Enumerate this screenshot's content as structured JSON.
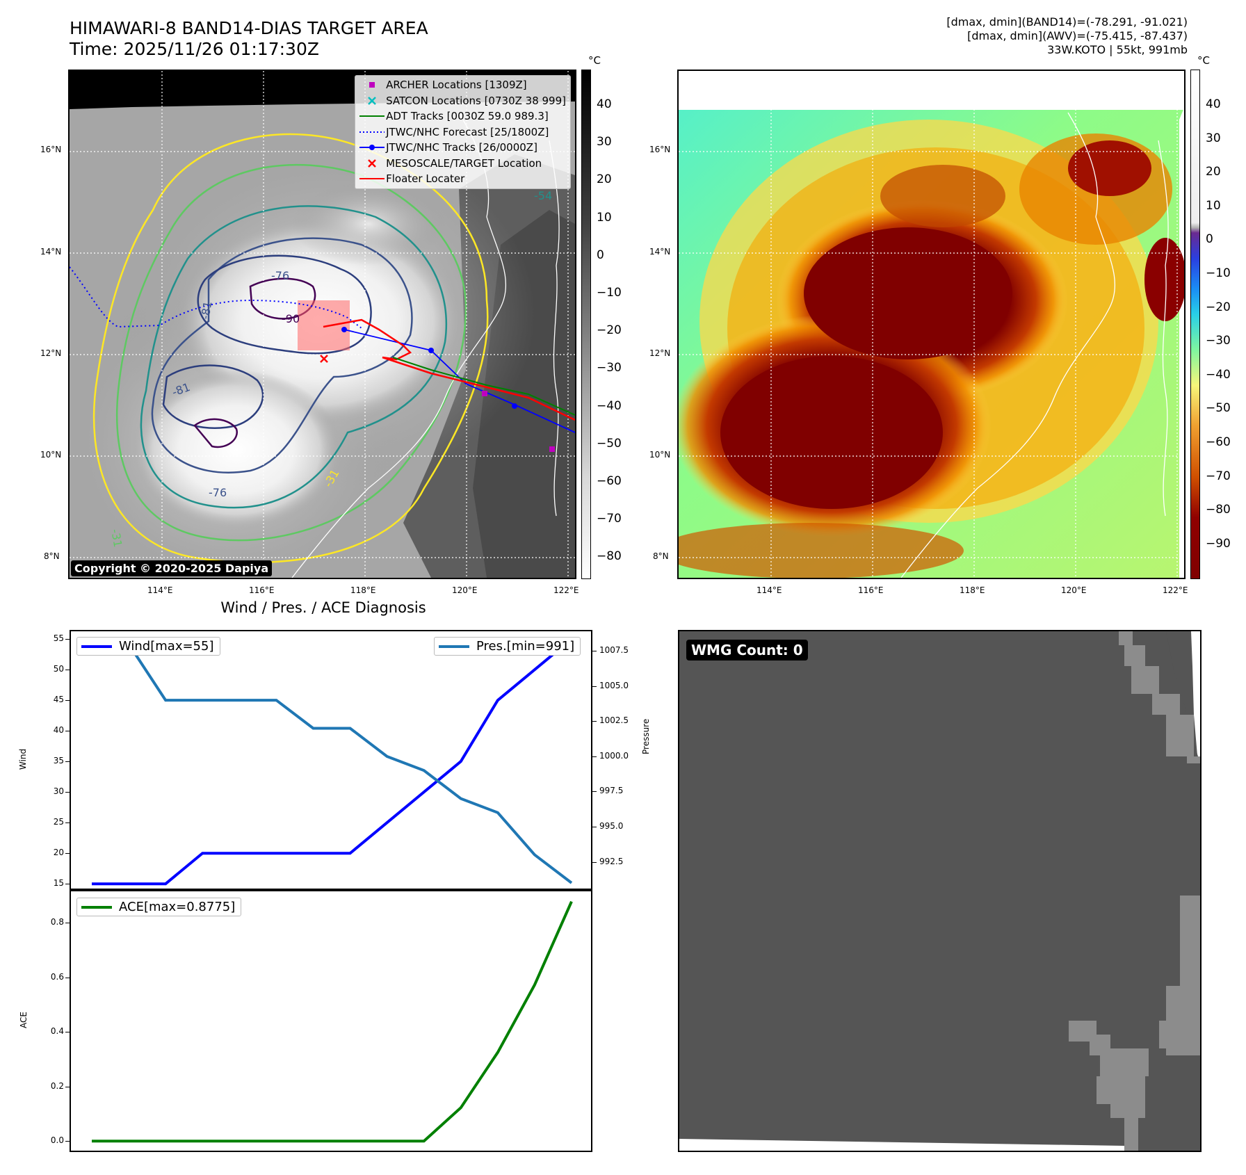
{
  "header": {
    "title_line1": "HIMAWARI-8 BAND14-DIAS TARGET AREA",
    "title_line2": "Time: 2025/11/26 01:17:30Z",
    "info_line1": "[dmax, dmin](BAND14)=(-78.291, -91.021)",
    "info_line2": "[dmax, dmin](AWV)=(-75.415, -87.437)",
    "info_line3": "33W.KOTO | 55kt, 991mb"
  },
  "map": {
    "lat_labels": [
      "16°N",
      "14°N",
      "12°N",
      "10°N",
      "8°N"
    ],
    "lon_labels": [
      "114°E",
      "116°E",
      "118°E",
      "120°E",
      "122°E"
    ],
    "contour_labels": [
      "-90",
      "-81",
      "-76",
      "-81",
      "-76",
      "-54",
      "-31",
      "-31"
    ],
    "copyright": "Copyright © 2020-2025 Dapiya",
    "legend": [
      {
        "label": "ARCHER Locations [1309Z]",
        "color": "#bf00bf",
        "symbol": "square"
      },
      {
        "label": "SATCON Locations [0730Z 38 999]",
        "color": "#00bfbf",
        "symbol": "x"
      },
      {
        "label": "ADT Tracks [0030Z 59.0 989.3]",
        "color": "#008000",
        "symbol": "line"
      },
      {
        "label": "JTWC/NHC Forecast [25/1800Z]",
        "color": "#0000ff",
        "symbol": "dotted"
      },
      {
        "label": "JTWC/NHC Tracks [26/0000Z]",
        "color": "#0000ff",
        "symbol": "line-dot"
      },
      {
        "label": "MESOSCALE/TARGET Location",
        "color": "#ff0000",
        "symbol": "x"
      },
      {
        "label": "Floater Locater",
        "color": "#ff0000",
        "symbol": "line"
      }
    ]
  },
  "colorbars": {
    "unit": "°C",
    "left_ticks": [
      "40",
      "30",
      "20",
      "10",
      "0",
      "−10",
      "−20",
      "−30",
      "−40",
      "−50",
      "−60",
      "−70",
      "−80"
    ],
    "right_ticks": [
      "40",
      "30",
      "20",
      "10",
      "0",
      "−10",
      "−20",
      "−30",
      "−40",
      "−50",
      "−60",
      "−70",
      "−80",
      "−90"
    ]
  },
  "diagnosis": {
    "title": "Wind / Pres. / ACE Diagnosis",
    "wind_ylabel": "Wind",
    "pres_ylabel": "Pressure",
    "ace_ylabel": "ACE",
    "wind_legend": "Wind[max=55]",
    "pres_legend": "Pres.[min=991]",
    "ace_legend": "ACE[max=0.8775]",
    "colors": {
      "wind": "#0000ff",
      "pres": "#1f77b4",
      "ace": "#008000"
    }
  },
  "chart_data": [
    {
      "type": "line",
      "title": "Wind / Pres. / ACE Diagnosis",
      "x": [
        0,
        1,
        2,
        3,
        4,
        5,
        6,
        7,
        8,
        9,
        10,
        11,
        12,
        13
      ],
      "series": [
        {
          "name": "Wind[max=55]",
          "axis": "left",
          "values": [
            15,
            15,
            15,
            20,
            20,
            20,
            20,
            20,
            25,
            30,
            35,
            45,
            50,
            55
          ]
        },
        {
          "name": "Pres.[min=991]",
          "axis": "right",
          "values": [
            1008,
            1008,
            1004,
            1004,
            1004,
            1004,
            1002,
            1002,
            1000,
            999,
            997,
            996,
            993,
            991
          ]
        }
      ],
      "ylabel": "Wind",
      "y2label": "Pressure",
      "ylim": [
        14,
        56.5
      ],
      "y2lim": [
        990.5,
        1009
      ],
      "yticks": [
        15,
        20,
        25,
        30,
        35,
        40,
        45,
        50,
        55
      ],
      "y2ticks": [
        "992.5",
        "995.0",
        "997.5",
        "1000.0",
        "1002.5",
        "1005.0",
        "1007.5"
      ]
    },
    {
      "type": "line",
      "x": [
        0,
        1,
        2,
        3,
        4,
        5,
        6,
        7,
        8,
        9,
        10,
        11,
        12,
        13
      ],
      "series": [
        {
          "name": "ACE[max=0.8775]",
          "values": [
            0,
            0,
            0,
            0,
            0,
            0,
            0,
            0,
            0,
            0,
            0.1225,
            0.325,
            0.5725,
            0.8775
          ]
        }
      ],
      "ylabel": "ACE",
      "ylim": [
        -0.04,
        0.92
      ],
      "yticks": [
        "0.0",
        "0.2",
        "0.4",
        "0.6",
        "0.8"
      ]
    }
  ],
  "wmg": {
    "label": "WMG Count: 0"
  }
}
